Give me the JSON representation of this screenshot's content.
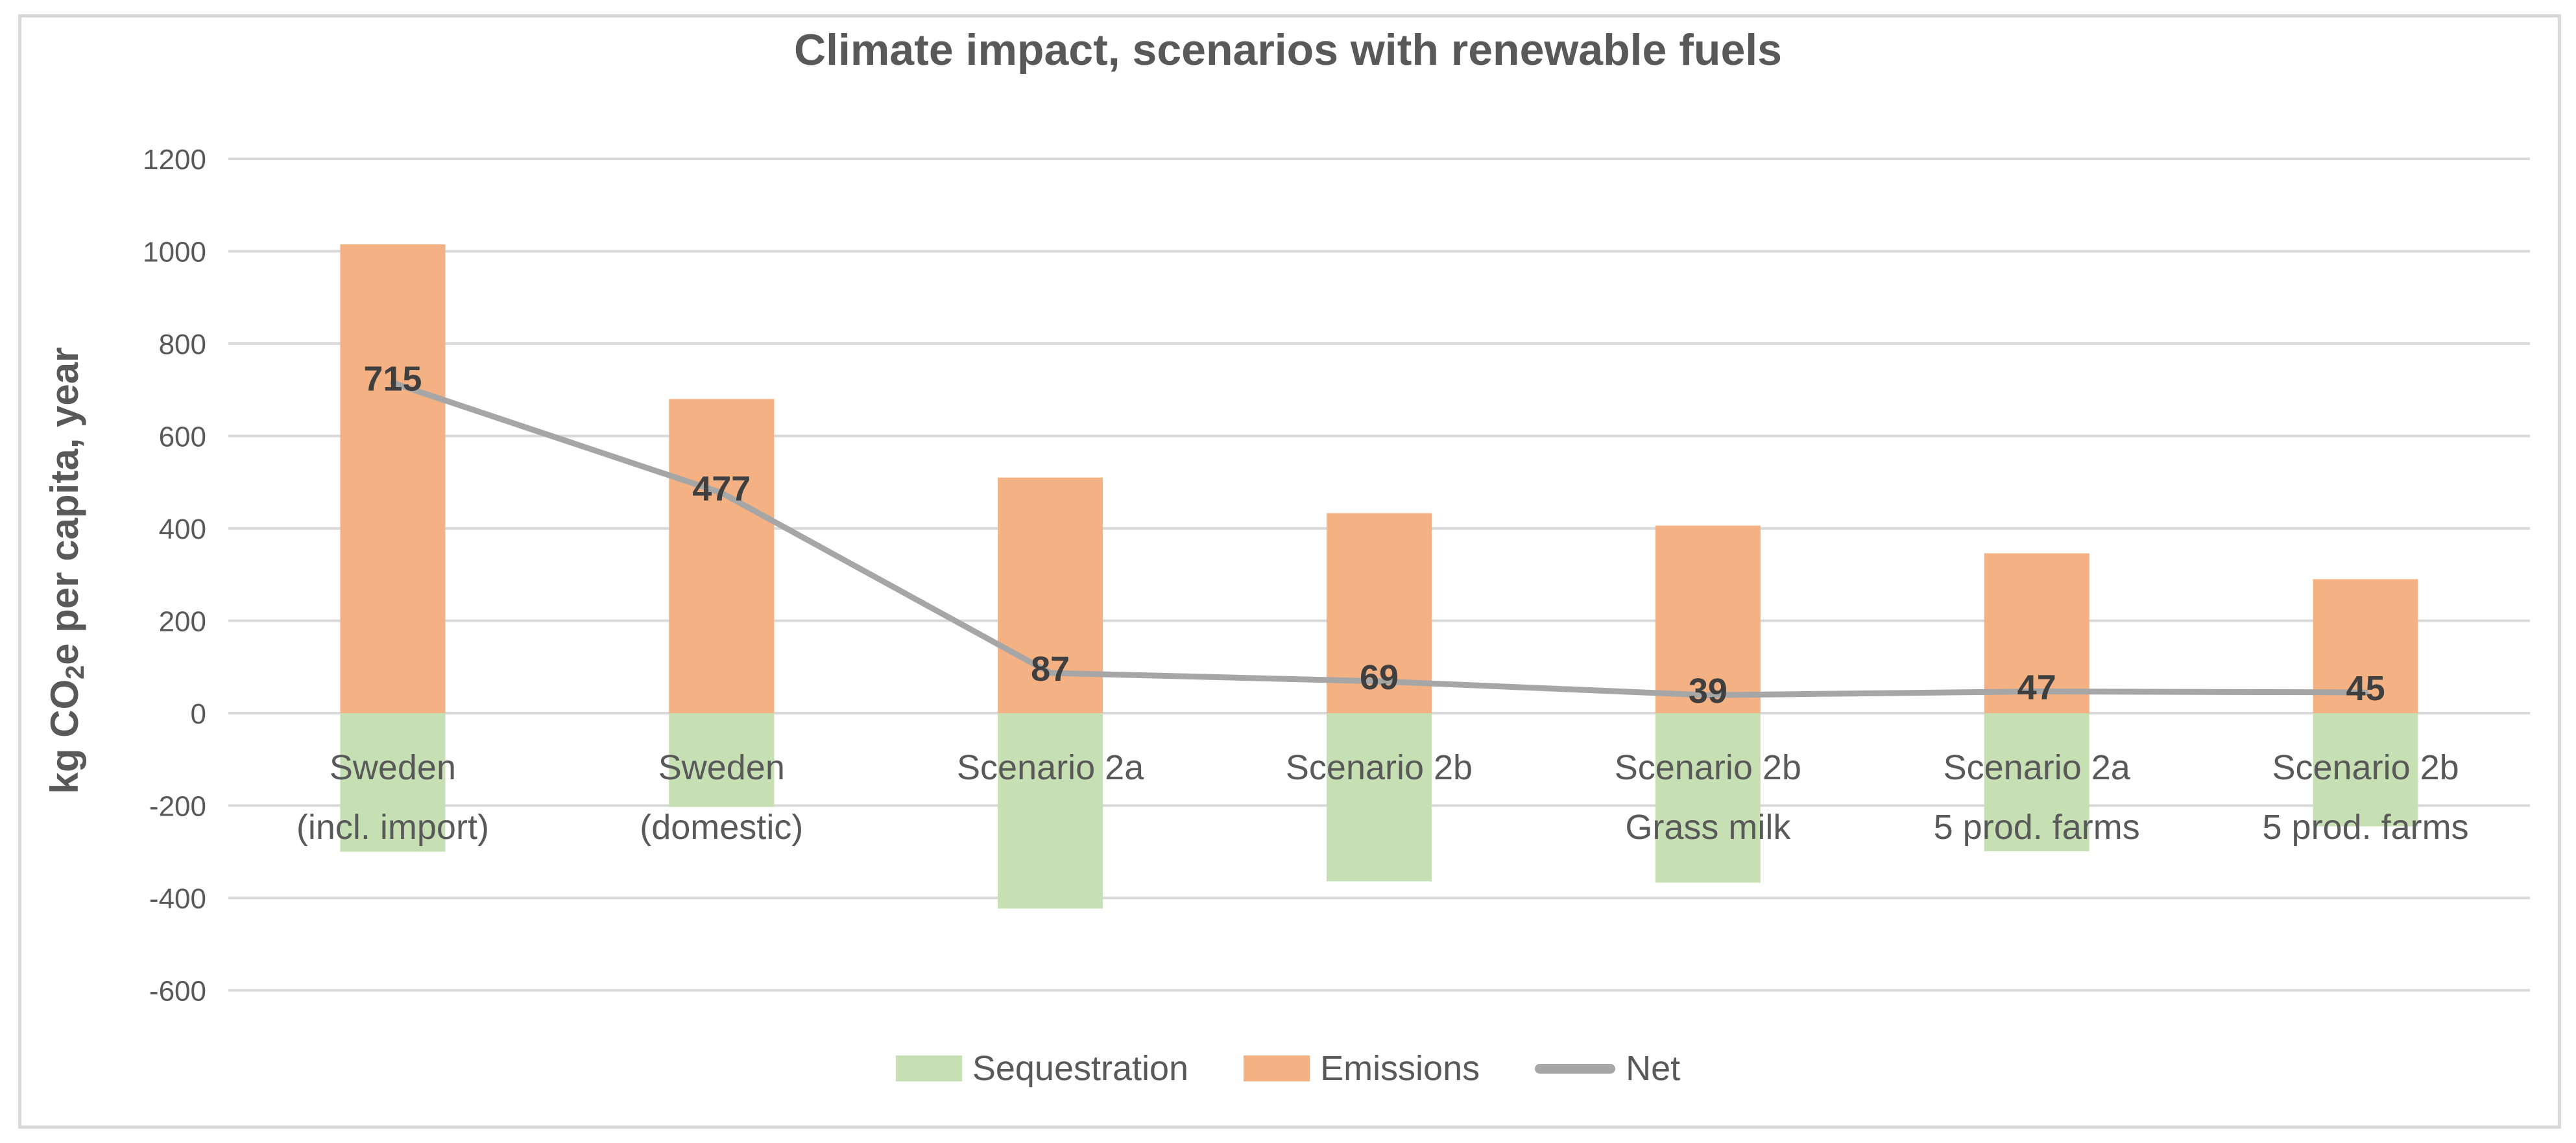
{
  "chart_data": {
    "type": "combo",
    "title": "Climate impact, scenarios with renewable fuels",
    "y_axis": {
      "label_prefix": "kg CO",
      "label_sub": "2",
      "label_suffix": "e per capita, year",
      "ticks": [
        1200,
        1000,
        800,
        600,
        400,
        200,
        0,
        -200,
        -400,
        -600
      ],
      "range": [
        -600,
        1200
      ],
      "tick_step": 200
    },
    "categories": [
      [
        "Sweden",
        "(incl. import)"
      ],
      [
        "Sweden",
        "(domestic)"
      ],
      [
        "Scenario 2a"
      ],
      [
        "Scenario 2b"
      ],
      [
        "Scenario 2b",
        "Grass milk"
      ],
      [
        "Scenario 2a",
        "5 prod. farms"
      ],
      [
        "Scenario 2b",
        "5 prod. farms"
      ]
    ],
    "series": [
      {
        "name": "Sequestration",
        "type": "bar",
        "color": "#C6E0B4",
        "values": [
          -300,
          -203,
          -423,
          -364,
          -367,
          -299,
          -245
        ]
      },
      {
        "name": "Emissions",
        "type": "bar",
        "color": "#F4B183",
        "values": [
          1015,
          680,
          510,
          433,
          406,
          346,
          290
        ]
      },
      {
        "name": "Net",
        "type": "line",
        "color": "#A6A6A6",
        "values": [
          715,
          477,
          87,
          69,
          39,
          47,
          45
        ],
        "data_labels": [
          "715",
          "477",
          "87",
          "69",
          "39",
          "47",
          "45"
        ]
      }
    ],
    "legend": [
      {
        "name": "Sequestration",
        "color": "#C6E0B4",
        "marker": "rect"
      },
      {
        "name": "Emissions",
        "color": "#F4B183",
        "marker": "rect"
      },
      {
        "name": "Net",
        "color": "#A6A6A6",
        "marker": "line"
      }
    ],
    "legend_position": "bottom",
    "grid": true,
    "colors": {
      "gridline": "#D9D9D9",
      "frame": "#D9D9D9",
      "axis_text": "#595959",
      "data_label": "#3F3F3F",
      "title_text": "#595959"
    }
  }
}
